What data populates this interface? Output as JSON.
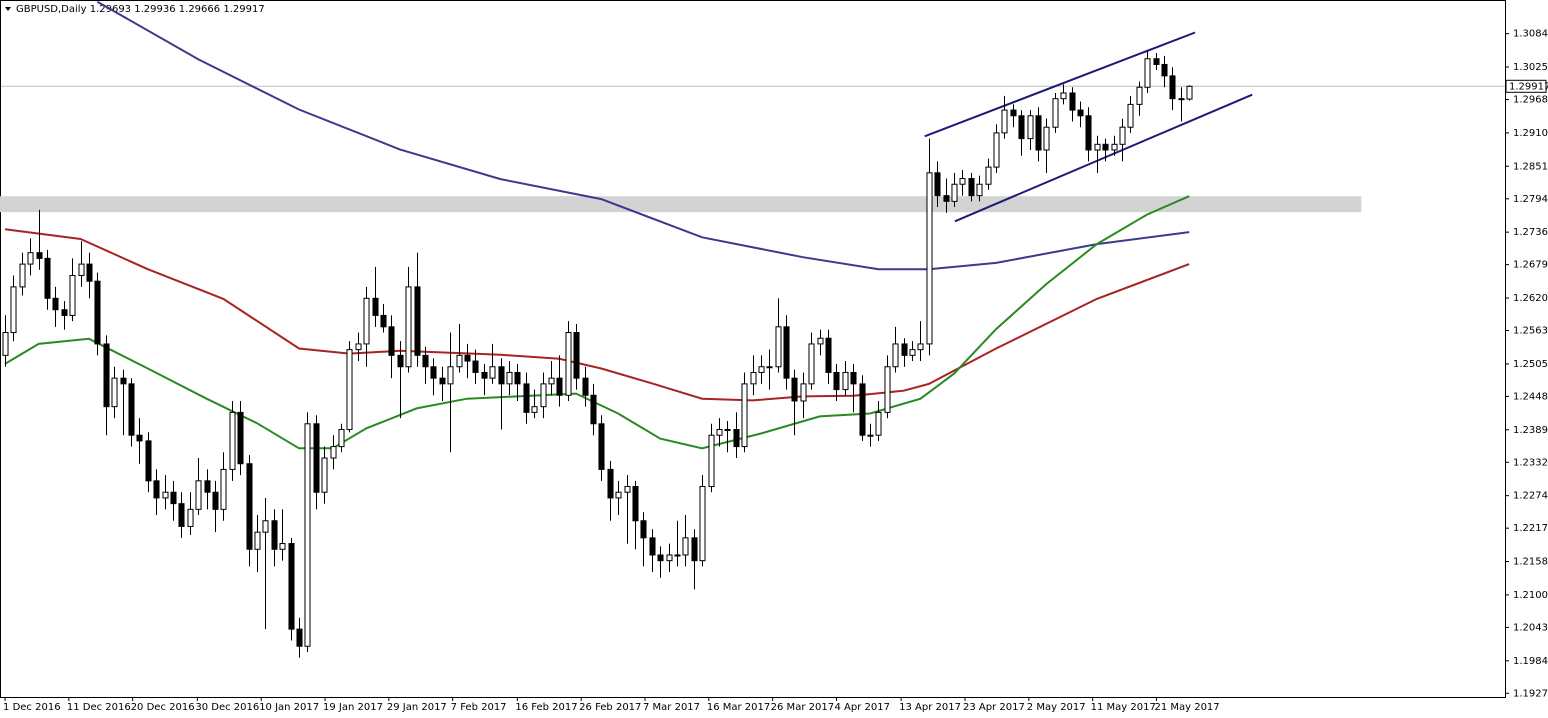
{
  "chart_data": {
    "type": "candlestick",
    "symbol": "GBPUSD,Daily",
    "xlim": [
      -0.6,
      178.6
    ],
    "ylim": [
      1.1921,
      1.3143
    ],
    "xticks": [
      {
        "value": 0,
        "label": "1 Dec 2016"
      },
      {
        "value": 7.6,
        "label": "11 Dec 2016"
      },
      {
        "value": 15.2,
        "label": "20 Dec 2016"
      },
      {
        "value": 22.9,
        "label": "30 Dec 2016"
      },
      {
        "value": 30.5,
        "label": "10 Jan 2017"
      },
      {
        "value": 38.1,
        "label": "19 Jan 2017"
      },
      {
        "value": 45.7,
        "label": "29 Jan 2017"
      },
      {
        "value": 53.3,
        "label": "7 Feb 2017"
      },
      {
        "value": 61,
        "label": "16 Feb 2017"
      },
      {
        "value": 68.6,
        "label": "26 Feb 2017"
      },
      {
        "value": 76.2,
        "label": "7 Mar 2017"
      },
      {
        "value": 83.8,
        "label": "16 Mar 2017"
      },
      {
        "value": 91.4,
        "label": "26 Mar 2017"
      },
      {
        "value": 99,
        "label": "4 Apr 2017"
      },
      {
        "value": 106.7,
        "label": "13 Apr 2017"
      },
      {
        "value": 114.3,
        "label": "23 Apr 2017"
      },
      {
        "value": 121.9,
        "label": "2 May 2017"
      },
      {
        "value": 129.5,
        "label": "11 May 2017"
      },
      {
        "value": 137.1,
        "label": "21 May 2017"
      }
    ],
    "yticks": [
      {
        "value": 1.3084,
        "label": "1.30840"
      },
      1.30255,
      1.29685,
      {
        "value": 1.291,
        "label": "1.29100"
      },
      1.28515,
      1.27945,
      {
        "value": 1.2736,
        "label": "1.27360"
      },
      {
        "value": 1.2679,
        "label": "1.26790"
      },
      1.26205,
      1.25635,
      {
        "value": 1.2505,
        "label": "1.25050"
      },
      {
        "value": 1.2448,
        "label": "1.24480"
      },
      1.23895,
      1.23325,
      {
        "value": 1.2274,
        "label": "1.22740"
      },
      {
        "value": 1.2217,
        "label": "1.22170"
      },
      1.21585,
      {
        "value": 1.21,
        "label": "1.21000"
      },
      {
        "value": 1.2043,
        "label": "1.20430"
      },
      1.19845,
      1.19275
    ],
    "up_color": "#ffffff",
    "down_color": "#000000",
    "candle_outline": "#000000",
    "candles": [
      [
        1.252,
        1.259,
        1.25,
        1.256
      ],
      [
        1.256,
        1.266,
        1.2545,
        1.264
      ],
      [
        1.264,
        1.27,
        1.2625,
        1.268
      ],
      [
        1.268,
        1.2725,
        1.266,
        1.27
      ],
      [
        1.27,
        1.2775,
        1.267,
        1.269
      ],
      [
        1.269,
        1.2705,
        1.26,
        1.262
      ],
      [
        1.262,
        1.264,
        1.257,
        1.26
      ],
      [
        1.26,
        1.2615,
        1.2565,
        1.259
      ],
      [
        1.259,
        1.269,
        1.258,
        1.266
      ],
      [
        1.266,
        1.272,
        1.264,
        1.268
      ],
      [
        1.268,
        1.27,
        1.262,
        1.265
      ],
      [
        1.265,
        1.2665,
        1.252,
        1.254
      ],
      [
        1.254,
        1.2555,
        1.238,
        1.243
      ],
      [
        1.243,
        1.25,
        1.241,
        1.248
      ],
      [
        1.248,
        1.2495,
        1.238,
        1.247
      ],
      [
        1.247,
        1.248,
        1.236,
        1.238
      ],
      [
        1.238,
        1.241,
        1.233,
        1.237
      ],
      [
        1.237,
        1.2385,
        1.228,
        1.23
      ],
      [
        1.23,
        1.232,
        1.224,
        1.227
      ],
      [
        1.227,
        1.231,
        1.225,
        1.228
      ],
      [
        1.228,
        1.23,
        1.223,
        1.226
      ],
      [
        1.226,
        1.228,
        1.22,
        1.222
      ],
      [
        1.222,
        1.228,
        1.2205,
        1.225
      ],
      [
        1.225,
        1.234,
        1.224,
        1.23
      ],
      [
        1.23,
        1.232,
        1.225,
        1.228
      ],
      [
        1.228,
        1.23,
        1.221,
        1.225
      ],
      [
        1.225,
        1.235,
        1.223,
        1.232
      ],
      [
        1.232,
        1.244,
        1.23,
        1.242
      ],
      [
        1.242,
        1.244,
        1.231,
        1.233
      ],
      [
        1.233,
        1.2345,
        1.215,
        1.218
      ],
      [
        1.218,
        1.224,
        1.214,
        1.221
      ],
      [
        1.221,
        1.227,
        1.204,
        1.223
      ],
      [
        1.223,
        1.225,
        1.215,
        1.218
      ],
      [
        1.218,
        1.225,
        1.216,
        1.219
      ],
      [
        1.219,
        1.22,
        1.202,
        1.204
      ],
      [
        1.204,
        1.206,
        1.199,
        1.201
      ],
      [
        1.201,
        1.242,
        1.2,
        1.24
      ],
      [
        1.24,
        1.2415,
        1.225,
        1.228
      ],
      [
        1.228,
        1.236,
        1.226,
        1.234
      ],
      [
        1.234,
        1.238,
        1.232,
        1.236
      ],
      [
        1.236,
        1.24,
        1.235,
        1.239
      ],
      [
        1.239,
        1.2545,
        1.2385,
        1.253
      ],
      [
        1.253,
        1.256,
        1.251,
        1.254
      ],
      [
        1.254,
        1.264,
        1.25,
        1.262
      ],
      [
        1.262,
        1.2675,
        1.257,
        1.259
      ],
      [
        1.259,
        1.261,
        1.256,
        1.257
      ],
      [
        1.257,
        1.259,
        1.248,
        1.252
      ],
      [
        1.252,
        1.2545,
        1.241,
        1.25
      ],
      [
        1.25,
        1.2675,
        1.249,
        1.264
      ],
      [
        1.264,
        1.27,
        1.25,
        1.252
      ],
      [
        1.252,
        1.2535,
        1.247,
        1.25
      ],
      [
        1.25,
        1.2515,
        1.245,
        1.248
      ],
      [
        1.248,
        1.25,
        1.244,
        1.247
      ],
      [
        1.247,
        1.256,
        1.235,
        1.25
      ],
      [
        1.25,
        1.2575,
        1.249,
        1.252
      ],
      [
        1.252,
        1.254,
        1.248,
        1.251
      ],
      [
        1.251,
        1.253,
        1.247,
        1.249
      ],
      [
        1.249,
        1.2505,
        1.245,
        1.248
      ],
      [
        1.248,
        1.254,
        1.247,
        1.25
      ],
      [
        1.25,
        1.2515,
        1.239,
        1.247
      ],
      [
        1.247,
        1.251,
        1.245,
        1.249
      ],
      [
        1.249,
        1.2505,
        1.244,
        1.247
      ],
      [
        1.247,
        1.249,
        1.24,
        1.242
      ],
      [
        1.242,
        1.246,
        1.241,
        1.243
      ],
      [
        1.243,
        1.249,
        1.241,
        1.247
      ],
      [
        1.247,
        1.251,
        1.245,
        1.248
      ],
      [
        1.248,
        1.252,
        1.243,
        1.245
      ],
      [
        1.245,
        1.258,
        1.244,
        1.256
      ],
      [
        1.256,
        1.2575,
        1.246,
        1.248
      ],
      [
        1.248,
        1.25,
        1.243,
        1.245
      ],
      [
        1.245,
        1.247,
        1.238,
        1.24
      ],
      [
        1.24,
        1.2415,
        1.23,
        1.232
      ],
      [
        1.232,
        1.2335,
        1.223,
        1.227
      ],
      [
        1.227,
        1.23,
        1.224,
        1.228
      ],
      [
        1.228,
        1.231,
        1.219,
        1.229
      ],
      [
        1.229,
        1.23,
        1.218,
        1.223
      ],
      [
        1.223,
        1.2245,
        1.215,
        1.22
      ],
      [
        1.22,
        1.2215,
        1.214,
        1.217
      ],
      [
        1.217,
        1.2185,
        1.213,
        1.216
      ],
      [
        1.216,
        1.219,
        1.214,
        1.217
      ],
      [
        1.217,
        1.223,
        1.215,
        1.217
      ],
      [
        1.217,
        1.224,
        1.215,
        1.22
      ],
      [
        1.22,
        1.2215,
        1.211,
        1.216
      ],
      [
        1.216,
        1.231,
        1.215,
        1.229
      ],
      [
        1.229,
        1.24,
        1.228,
        1.238
      ],
      [
        1.238,
        1.241,
        1.236,
        1.239
      ],
      [
        1.239,
        1.2405,
        1.235,
        1.239
      ],
      [
        1.239,
        1.242,
        1.234,
        1.236
      ],
      [
        1.236,
        1.249,
        1.235,
        1.247
      ],
      [
        1.247,
        1.252,
        1.245,
        1.249
      ],
      [
        1.249,
        1.252,
        1.247,
        1.25
      ],
      [
        1.25,
        1.253,
        1.246,
        1.25
      ],
      [
        1.25,
        1.262,
        1.249,
        1.257
      ],
      [
        1.257,
        1.259,
        1.246,
        1.248
      ],
      [
        1.248,
        1.2495,
        1.238,
        1.244
      ],
      [
        1.244,
        1.249,
        1.241,
        1.247
      ],
      [
        1.247,
        1.256,
        1.246,
        1.254
      ],
      [
        1.254,
        1.2565,
        1.252,
        1.255
      ],
      [
        1.255,
        1.2565,
        1.247,
        1.249
      ],
      [
        1.249,
        1.2505,
        1.244,
        1.246
      ],
      [
        1.246,
        1.251,
        1.245,
        1.249
      ],
      [
        1.249,
        1.2505,
        1.242,
        1.247
      ],
      [
        1.247,
        1.2485,
        1.237,
        1.238
      ],
      [
        1.238,
        1.24,
        1.236,
        1.238
      ],
      [
        1.238,
        1.244,
        1.237,
        1.242
      ],
      [
        1.242,
        1.252,
        1.241,
        1.25
      ],
      [
        1.25,
        1.257,
        1.249,
        1.254
      ],
      [
        1.254,
        1.255,
        1.25,
        1.252
      ],
      [
        1.252,
        1.2545,
        1.251,
        1.253
      ],
      [
        1.253,
        1.258,
        1.251,
        1.254
      ],
      [
        1.254,
        1.29,
        1.252,
        1.284
      ],
      [
        1.284,
        1.286,
        1.278,
        1.28
      ],
      [
        1.28,
        1.283,
        1.277,
        1.279
      ],
      [
        1.279,
        1.284,
        1.278,
        1.282
      ],
      [
        1.282,
        1.2845,
        1.28,
        1.283
      ],
      [
        1.283,
        1.284,
        1.279,
        1.28
      ],
      [
        1.28,
        1.2835,
        1.279,
        1.282
      ],
      [
        1.282,
        1.2865,
        1.281,
        1.285
      ],
      [
        1.285,
        1.2925,
        1.284,
        1.291
      ],
      [
        1.291,
        1.2975,
        1.29,
        1.295
      ],
      [
        1.295,
        1.296,
        1.292,
        1.294
      ],
      [
        1.294,
        1.295,
        1.287,
        1.29
      ],
      [
        1.29,
        1.295,
        1.288,
        1.294
      ],
      [
        1.294,
        1.2955,
        1.286,
        1.288
      ],
      [
        1.288,
        1.2935,
        1.284,
        1.292
      ],
      [
        1.292,
        1.298,
        1.291,
        1.297
      ],
      [
        1.297,
        1.2995,
        1.296,
        1.298
      ],
      [
        1.298,
        1.299,
        1.293,
        1.295
      ],
      [
        1.295,
        1.2965,
        1.292,
        1.294
      ],
      [
        1.294,
        1.2955,
        1.286,
        1.288
      ],
      [
        1.288,
        1.2905,
        1.284,
        1.289
      ],
      [
        1.289,
        1.29,
        1.286,
        1.288
      ],
      [
        1.288,
        1.2905,
        1.287,
        1.289
      ],
      [
        1.289,
        1.2935,
        1.286,
        1.292
      ],
      [
        1.292,
        1.2975,
        1.291,
        1.296
      ],
      [
        1.296,
        1.3,
        1.294,
        1.299
      ],
      [
        1.299,
        1.3055,
        1.298,
        1.304
      ],
      [
        1.304,
        1.305,
        1.302,
        1.303
      ],
      [
        1.303,
        1.3045,
        1.299,
        1.301
      ],
      [
        1.301,
        1.3025,
        1.295,
        1.297
      ],
      [
        1.297,
        1.299,
        1.293,
        1.2969
      ],
      [
        1.29693,
        1.29936,
        1.29666,
        1.29917
      ]
    ],
    "lines": [
      {
        "color": "#3c3a8a",
        "x": [
          11,
          23,
          35,
          47,
          59,
          71,
          83,
          95,
          104,
          110,
          118,
          130,
          141
        ],
        "values": [
          1.314,
          1.3039,
          1.2951,
          1.2881,
          1.2829,
          1.2794,
          1.2727,
          1.2692,
          1.2671,
          1.2671,
          1.2682,
          1.2715,
          1.2736
        ]
      },
      {
        "color": "#a82424",
        "x": [
          0,
          9,
          17,
          26,
          35,
          41,
          47,
          59,
          66,
          71,
          77,
          83,
          89,
          95,
          101,
          107,
          110,
          118,
          130,
          141
        ],
        "values": [
          1.2741,
          1.2724,
          1.2671,
          1.2619,
          1.2532,
          1.2523,
          1.2528,
          1.2521,
          1.2514,
          1.2497,
          1.2471,
          1.2444,
          1.2441,
          1.2448,
          1.2449,
          1.2458,
          1.247,
          1.2532,
          1.2619,
          1.268
        ]
      },
      {
        "color": "#2a8a22",
        "x": [
          0,
          4,
          10,
          17,
          24,
          30,
          35,
          39,
          43,
          49,
          55,
          61,
          68,
          73,
          78,
          83,
          90,
          97,
          103,
          109,
          113,
          118,
          124,
          130,
          136,
          141
        ],
        "values": [
          1.2505,
          1.254,
          1.2549,
          1.2497,
          1.2444,
          1.2401,
          1.2357,
          1.2357,
          1.2392,
          1.2427,
          1.2444,
          1.2448,
          1.2453,
          1.2418,
          1.2374,
          1.2357,
          1.2383,
          1.2413,
          1.2418,
          1.2444,
          1.2488,
          1.2566,
          1.2645,
          1.2715,
          1.2767,
          1.2799
        ]
      }
    ],
    "trendlines": [
      {
        "color": "#1c1c78",
        "x": [
          109.5,
          141.7
        ],
        "values": [
          1.2904,
          1.3086
        ]
      },
      {
        "color": "#1c1c78",
        "x": [
          113.1,
          148.5
        ],
        "values": [
          1.2755,
          1.2977
        ]
      }
    ],
    "zone": {
      "color": "#d3d3d3",
      "x": [
        -0.6,
        161.5
      ],
      "values": [
        1.2771,
        1.2799
      ]
    },
    "price_line_color": "#c0c0c0"
  }
}
